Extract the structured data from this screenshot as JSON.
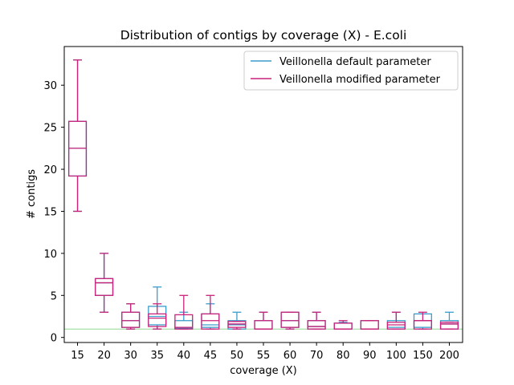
{
  "chart_data": {
    "type": "box",
    "title": "Distribution of contigs by coverage (X) - E.coli",
    "xlabel": "coverage (X)",
    "ylabel": "# contigs",
    "categories": [
      "15",
      "20",
      "30",
      "35",
      "40",
      "45",
      "50",
      "55",
      "60",
      "70",
      "80",
      "90",
      "100",
      "150",
      "200"
    ],
    "ylim": [
      -0.6,
      34.6
    ],
    "yticks": [
      0,
      5,
      10,
      15,
      20,
      25,
      30
    ],
    "grid": false,
    "legend": "top-right",
    "reference_line": {
      "y": 1,
      "color": "#90d890"
    },
    "series": [
      {
        "name": "Veillonella default parameter",
        "color": "#3b9ccc",
        "boxes": [
          {
            "min": 15,
            "q1": 19.2,
            "median": 22.5,
            "q3": 25.7,
            "max": 33
          },
          {
            "min": 3,
            "q1": 5,
            "median": 6.5,
            "q3": 7,
            "max": 10
          },
          {
            "min": 1,
            "q1": 1.2,
            "median": 2,
            "q3": 3,
            "max": 4
          },
          {
            "min": 1,
            "q1": 1.5,
            "median": 2.5,
            "q3": 3.7,
            "max": 6
          },
          {
            "min": 1,
            "q1": 1.1,
            "median": 1.2,
            "q3": 2,
            "max": 3
          },
          {
            "min": 1,
            "q1": 1.2,
            "median": 1.5,
            "q3": 2.8,
            "max": 4
          },
          {
            "min": 1,
            "q1": 1,
            "median": 1.5,
            "q3": 2,
            "max": 3
          },
          {
            "min": 1,
            "q1": 1,
            "median": 1,
            "q3": 2,
            "max": 3
          },
          {
            "min": 1,
            "q1": 1.2,
            "median": 2,
            "q3": 3,
            "max": 3
          },
          {
            "min": 1,
            "q1": 1,
            "median": 1.3,
            "q3": 2,
            "max": 3
          },
          {
            "min": 1,
            "q1": 1,
            "median": 1,
            "q3": 1.7,
            "max": 1.8
          },
          {
            "min": 1,
            "q1": 1,
            "median": 1,
            "q3": 2,
            "max": 2
          },
          {
            "min": 1,
            "q1": 1,
            "median": 1.2,
            "q3": 2,
            "max": 3
          },
          {
            "min": 1,
            "q1": 1.2,
            "median": 2,
            "q3": 2.8,
            "max": 2.8
          },
          {
            "min": 1,
            "q1": 1,
            "median": 1.6,
            "q3": 2,
            "max": 3
          }
        ]
      },
      {
        "name": "Veillonella modified parameter",
        "color": "#c9237a",
        "boxes": [
          {
            "min": 15,
            "q1": 19.2,
            "median": 22.5,
            "q3": 25.7,
            "max": 33
          },
          {
            "min": 3,
            "q1": 5,
            "median": 6.5,
            "q3": 7,
            "max": 10
          },
          {
            "min": 1,
            "q1": 1.2,
            "median": 2,
            "q3": 3,
            "max": 4
          },
          {
            "min": 1,
            "q1": 1.3,
            "median": 2.3,
            "q3": 2.8,
            "max": 4
          },
          {
            "min": 1,
            "q1": 1,
            "median": 1.2,
            "q3": 2.7,
            "max": 5
          },
          {
            "min": 1,
            "q1": 1,
            "median": 2,
            "q3": 2.8,
            "max": 5
          },
          {
            "min": 1,
            "q1": 1.2,
            "median": 1.6,
            "q3": 1.9,
            "max": 1.9
          },
          {
            "min": 1,
            "q1": 1,
            "median": 1,
            "q3": 2,
            "max": 3
          },
          {
            "min": 1,
            "q1": 1.2,
            "median": 2,
            "q3": 3,
            "max": 3
          },
          {
            "min": 1,
            "q1": 1,
            "median": 1.3,
            "q3": 2,
            "max": 3
          },
          {
            "min": 1,
            "q1": 1,
            "median": 1,
            "q3": 1.7,
            "max": 2
          },
          {
            "min": 1,
            "q1": 1,
            "median": 1,
            "q3": 2,
            "max": 2
          },
          {
            "min": 1,
            "q1": 1,
            "median": 1.5,
            "q3": 1.8,
            "max": 3
          },
          {
            "min": 1,
            "q1": 1,
            "median": 2,
            "q3": 2,
            "max": 3
          },
          {
            "min": 1,
            "q1": 1,
            "median": 1.6,
            "q3": 1.8,
            "max": 1.8
          }
        ]
      }
    ]
  }
}
